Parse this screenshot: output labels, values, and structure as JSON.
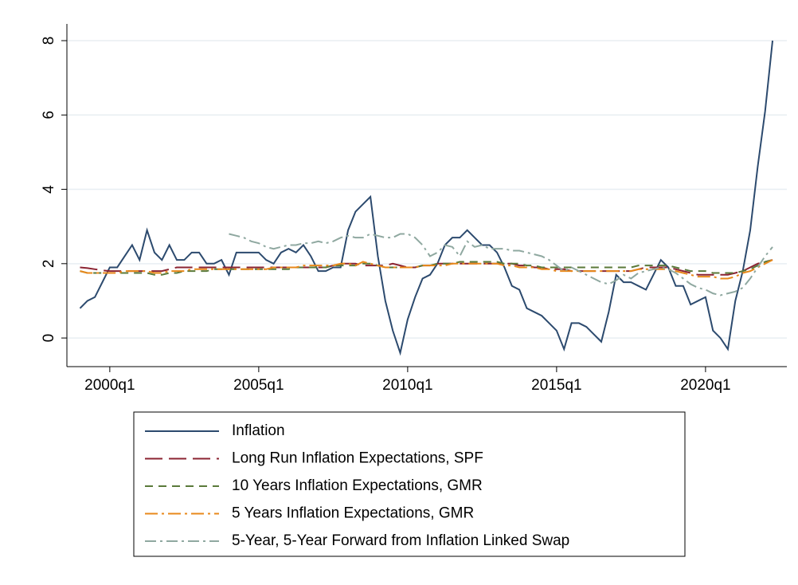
{
  "chart_data": {
    "type": "line",
    "x": [
      1999,
      1999.25,
      1999.5,
      1999.75,
      2000,
      2000.25,
      2000.5,
      2000.75,
      2001,
      2001.25,
      2001.5,
      2001.75,
      2002,
      2002.25,
      2002.5,
      2002.75,
      2003,
      2003.25,
      2003.5,
      2003.75,
      2004,
      2004.25,
      2004.5,
      2004.75,
      2005,
      2005.25,
      2005.5,
      2005.75,
      2006,
      2006.25,
      2006.5,
      2006.75,
      2007,
      2007.25,
      2007.5,
      2007.75,
      2008,
      2008.25,
      2008.5,
      2008.75,
      2009,
      2009.25,
      2009.5,
      2009.75,
      2010,
      2010.25,
      2010.5,
      2010.75,
      2011,
      2011.25,
      2011.5,
      2011.75,
      2012,
      2012.25,
      2012.5,
      2012.75,
      2013,
      2013.25,
      2013.5,
      2013.75,
      2014,
      2014.25,
      2014.5,
      2014.75,
      2015,
      2015.25,
      2015.5,
      2015.75,
      2016,
      2016.25,
      2016.5,
      2016.75,
      2017,
      2017.25,
      2017.5,
      2017.75,
      2018,
      2018.25,
      2018.5,
      2018.75,
      2019,
      2019.25,
      2019.5,
      2019.75,
      2020,
      2020.25,
      2020.5,
      2020.75,
      2021,
      2021.25,
      2021.5,
      2021.75,
      2022,
      2022.25
    ],
    "series": [
      {
        "name": "Inflation",
        "color": "#2c4a6e",
        "dash": "",
        "values": [
          0.8,
          1.0,
          1.1,
          1.5,
          1.9,
          1.9,
          2.2,
          2.5,
          2.1,
          2.9,
          2.3,
          2.1,
          2.5,
          2.1,
          2.1,
          2.3,
          2.3,
          2.0,
          2.0,
          2.1,
          1.7,
          2.3,
          2.3,
          2.3,
          2.3,
          2.1,
          2.0,
          2.3,
          2.4,
          2.3,
          2.5,
          2.2,
          1.8,
          1.8,
          1.9,
          1.9,
          2.9,
          3.4,
          3.6,
          3.8,
          2.2,
          1.0,
          0.2,
          -0.4,
          0.5,
          1.1,
          1.6,
          1.7,
          2.0,
          2.5,
          2.7,
          2.7,
          2.9,
          2.7,
          2.5,
          2.5,
          2.3,
          1.9,
          1.4,
          1.3,
          0.8,
          0.7,
          0.6,
          0.4,
          0.2,
          -0.3,
          0.4,
          0.4,
          0.3,
          0.1,
          -0.1,
          0.7,
          1.7,
          1.5,
          1.5,
          1.4,
          1.3,
          1.7,
          2.1,
          1.9,
          1.4,
          1.4,
          0.9,
          1.0,
          1.1,
          0.2,
          0.0,
          -0.3,
          1.0,
          1.8,
          2.9,
          4.6,
          6.1,
          8.0
        ]
      },
      {
        "name": "Long Run Inflation Expectations, SPF",
        "color": "#8b2332",
        "dash": "22 8",
        "values": [
          1.9,
          1.88,
          1.85,
          1.82,
          1.8,
          1.8,
          1.8,
          1.8,
          1.8,
          1.8,
          1.8,
          1.8,
          1.85,
          1.9,
          1.9,
          1.9,
          1.9,
          1.9,
          1.9,
          1.9,
          1.9,
          1.9,
          1.9,
          1.9,
          1.9,
          1.9,
          1.9,
          1.9,
          1.9,
          1.9,
          1.9,
          1.9,
          1.9,
          1.9,
          1.95,
          2.0,
          2.0,
          2.0,
          1.95,
          1.95,
          1.95,
          1.95,
          2.0,
          1.95,
          1.9,
          1.9,
          1.95,
          1.95,
          2.0,
          2.0,
          2.0,
          2.0,
          2.0,
          2.0,
          2.0,
          2.0,
          2.0,
          2.0,
          2.0,
          1.95,
          1.95,
          1.9,
          1.9,
          1.85,
          1.85,
          1.85,
          1.8,
          1.8,
          1.8,
          1.8,
          1.8,
          1.8,
          1.8,
          1.8,
          1.8,
          1.85,
          1.9,
          1.9,
          1.9,
          1.9,
          1.85,
          1.8,
          1.75,
          1.7,
          1.7,
          1.7,
          1.7,
          1.7,
          1.75,
          1.8,
          1.9,
          2.0,
          2.05,
          2.1
        ]
      },
      {
        "name": "10 Years Inflation Expectations, GMR",
        "color": "#5a7a3a",
        "dash": "10 7",
        "values": [
          1.8,
          1.75,
          1.75,
          1.75,
          1.75,
          1.75,
          1.75,
          1.75,
          1.75,
          1.75,
          1.7,
          1.7,
          1.75,
          1.75,
          1.8,
          1.8,
          1.8,
          1.8,
          1.85,
          1.85,
          1.85,
          1.85,
          1.85,
          1.85,
          1.85,
          1.85,
          1.85,
          1.85,
          1.85,
          1.9,
          1.9,
          1.9,
          1.9,
          1.9,
          1.95,
          1.95,
          1.95,
          1.95,
          2.0,
          2.0,
          1.95,
          1.9,
          1.9,
          1.9,
          1.9,
          1.9,
          1.95,
          1.95,
          2.0,
          2.0,
          2.0,
          2.05,
          2.05,
          2.05,
          2.05,
          2.05,
          2.05,
          2.0,
          2.0,
          2.0,
          1.95,
          1.95,
          1.9,
          1.9,
          1.9,
          1.9,
          1.9,
          1.9,
          1.9,
          1.9,
          1.9,
          1.9,
          1.9,
          1.9,
          1.9,
          1.95,
          1.95,
          1.95,
          1.95,
          1.95,
          1.9,
          1.85,
          1.8,
          1.8,
          1.8,
          1.75,
          1.75,
          1.75,
          1.75,
          1.8,
          1.85,
          1.95,
          2.05,
          2.1
        ]
      },
      {
        "name": "5 Years Inflation Expectations, GMR",
        "color": "#e8891b",
        "dash": "16 5 3 5",
        "values": [
          1.8,
          1.75,
          1.75,
          1.75,
          1.75,
          1.75,
          1.8,
          1.8,
          1.8,
          1.8,
          1.75,
          1.75,
          1.8,
          1.8,
          1.8,
          1.85,
          1.85,
          1.85,
          1.85,
          1.85,
          1.85,
          1.85,
          1.85,
          1.85,
          1.85,
          1.85,
          1.9,
          1.9,
          1.9,
          1.9,
          1.95,
          1.95,
          1.95,
          1.95,
          1.95,
          2.0,
          2.0,
          1.95,
          2.05,
          2.0,
          1.95,
          1.9,
          1.9,
          1.9,
          1.9,
          1.9,
          1.95,
          1.95,
          1.95,
          1.95,
          2.0,
          2.0,
          2.0,
          2.0,
          2.0,
          2.0,
          2.0,
          1.95,
          1.95,
          1.9,
          1.9,
          1.9,
          1.85,
          1.85,
          1.8,
          1.8,
          1.8,
          1.8,
          1.8,
          1.8,
          1.8,
          1.8,
          1.8,
          1.8,
          1.8,
          1.85,
          1.85,
          1.85,
          1.85,
          1.85,
          1.8,
          1.75,
          1.7,
          1.65,
          1.65,
          1.65,
          1.6,
          1.6,
          1.65,
          1.75,
          1.8,
          1.9,
          2.0,
          2.1
        ]
      },
      {
        "name": "5-Year, 5-Year Forward from Inflation Linked Swap",
        "color": "#8fa8a0",
        "dash": "14 5 3 5",
        "values": [
          null,
          null,
          null,
          null,
          null,
          null,
          null,
          null,
          null,
          null,
          null,
          null,
          null,
          null,
          null,
          null,
          null,
          null,
          null,
          null,
          2.8,
          2.75,
          2.7,
          2.6,
          2.55,
          2.45,
          2.4,
          2.45,
          2.5,
          2.5,
          2.55,
          2.55,
          2.6,
          2.55,
          2.6,
          2.7,
          2.75,
          2.7,
          2.7,
          2.8,
          2.75,
          2.7,
          2.7,
          2.8,
          2.8,
          2.7,
          2.5,
          2.2,
          2.3,
          2.5,
          2.45,
          2.2,
          2.6,
          2.45,
          2.5,
          2.4,
          2.4,
          2.4,
          2.35,
          2.35,
          2.3,
          2.25,
          2.2,
          2.1,
          1.95,
          1.8,
          1.9,
          1.8,
          1.7,
          1.6,
          1.5,
          1.45,
          1.55,
          1.7,
          1.6,
          1.75,
          1.8,
          1.85,
          1.9,
          1.85,
          1.75,
          1.6,
          1.45,
          1.35,
          1.3,
          1.2,
          1.15,
          1.2,
          1.25,
          1.35,
          1.6,
          1.9,
          2.2,
          2.45
        ]
      }
    ],
    "xlim": [
      1998.56,
      2022.73
    ],
    "xticks": [
      {
        "value": 2000,
        "label": "2000q1"
      },
      {
        "value": 2005,
        "label": "2005q1"
      },
      {
        "value": 2010,
        "label": "2010q1"
      },
      {
        "value": 2015,
        "label": "2015q1"
      },
      {
        "value": 2020,
        "label": "2020q1"
      }
    ],
    "ylim": [
      -0.77,
      8.45
    ],
    "yticks": [
      0,
      2,
      4,
      6,
      8
    ],
    "grid": true
  }
}
